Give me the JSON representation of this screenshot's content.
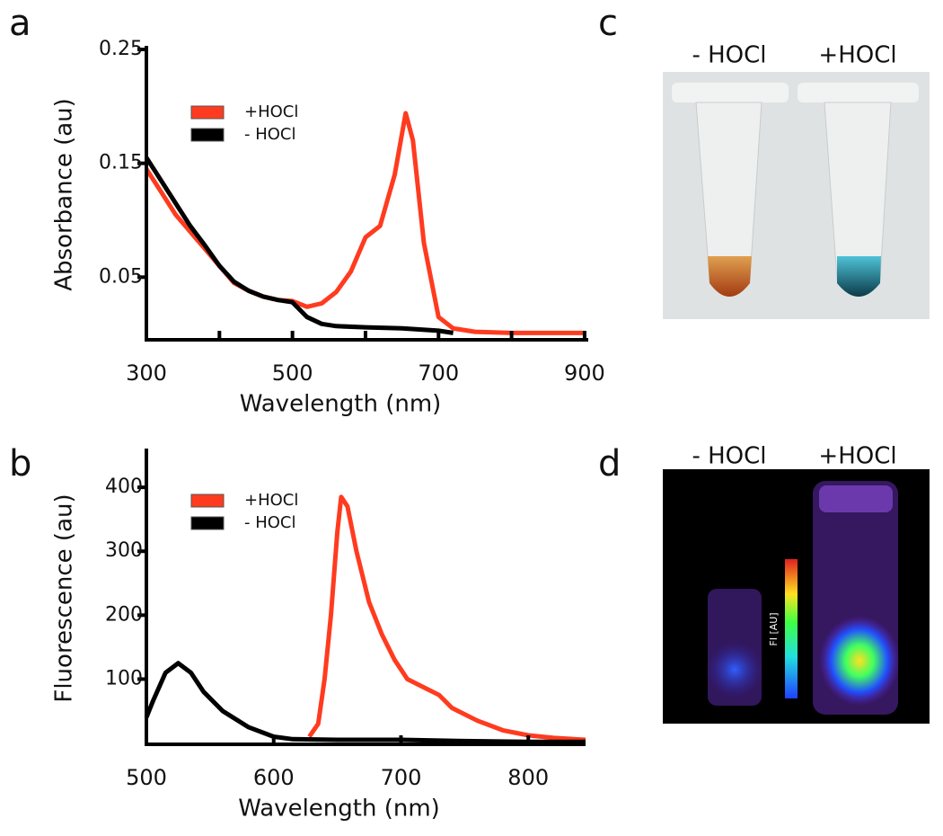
{
  "chart_data": [
    {
      "type": "line",
      "x_label": "Wavelength (nm)",
      "y_label": "Absorbance (au)",
      "xlim": [
        300,
        905
      ],
      "ylim": [
        -0.005,
        0.25
      ],
      "xticks": [
        300,
        500,
        700,
        900
      ],
      "xminor_ticks": [
        400,
        600,
        800
      ],
      "yticks": [
        0.05,
        0.15,
        0.25
      ],
      "series": [
        {
          "name": "+HOCl",
          "color": "#ff3b1f",
          "x": [
            300,
            320,
            340,
            360,
            380,
            400,
            420,
            440,
            460,
            480,
            500,
            520,
            540,
            560,
            580,
            600,
            620,
            640,
            655,
            665,
            680,
            700,
            720,
            750,
            800,
            900
          ],
          "values": [
            0.145,
            0.125,
            0.105,
            0.09,
            0.075,
            0.06,
            0.045,
            0.038,
            0.033,
            0.03,
            0.029,
            0.024,
            0.027,
            0.037,
            0.055,
            0.085,
            0.095,
            0.14,
            0.194,
            0.17,
            0.08,
            0.015,
            0.005,
            0.002,
            0.001,
            0.001
          ]
        },
        {
          "name": "- HOCl",
          "color": "#000000",
          "x": [
            300,
            320,
            340,
            360,
            380,
            400,
            420,
            440,
            460,
            480,
            500,
            520,
            540,
            560,
            600,
            650,
            700,
            720
          ],
          "values": [
            0.155,
            0.135,
            0.115,
            0.095,
            0.078,
            0.06,
            0.046,
            0.038,
            0.033,
            0.03,
            0.028,
            0.015,
            0.009,
            0.007,
            0.006,
            0.005,
            0.003,
            0.001
          ]
        }
      ]
    },
    {
      "type": "line",
      "x_label": "Wavelength (nm)",
      "y_label": "Fluorescence (au)",
      "xlim": [
        500,
        845
      ],
      "ylim": [
        -2,
        455
      ],
      "xticks": [
        500,
        600,
        700,
        800
      ],
      "yticks": [
        100,
        200,
        300,
        400
      ],
      "series": [
        {
          "name": "+HOCl",
          "color": "#ff3b1f",
          "x": [
            628,
            635,
            640,
            645,
            650,
            653,
            658,
            665,
            675,
            685,
            695,
            705,
            720,
            730,
            740,
            760,
            780,
            800,
            820,
            845
          ],
          "values": [
            10,
            30,
            100,
            200,
            330,
            385,
            370,
            300,
            220,
            170,
            130,
            100,
            85,
            75,
            55,
            35,
            20,
            12,
            8,
            5
          ]
        },
        {
          "name": "- HOCl",
          "color": "#000000",
          "x": [
            500,
            505,
            515,
            525,
            535,
            545,
            560,
            580,
            600,
            615,
            650,
            700,
            750,
            800,
            845
          ],
          "values": [
            40,
            65,
            110,
            125,
            110,
            80,
            50,
            25,
            10,
            6,
            5,
            5,
            3,
            2,
            2
          ]
        }
      ]
    }
  ],
  "panel_labels": [
    "a",
    "b",
    "c",
    "d"
  ],
  "photo_c": {
    "labels": [
      "- HOCl",
      "+HOCl"
    ]
  },
  "photo_d": {
    "labels": [
      "- HOCl",
      "+HOCl"
    ],
    "colorbar_label": "FI [AU]"
  }
}
